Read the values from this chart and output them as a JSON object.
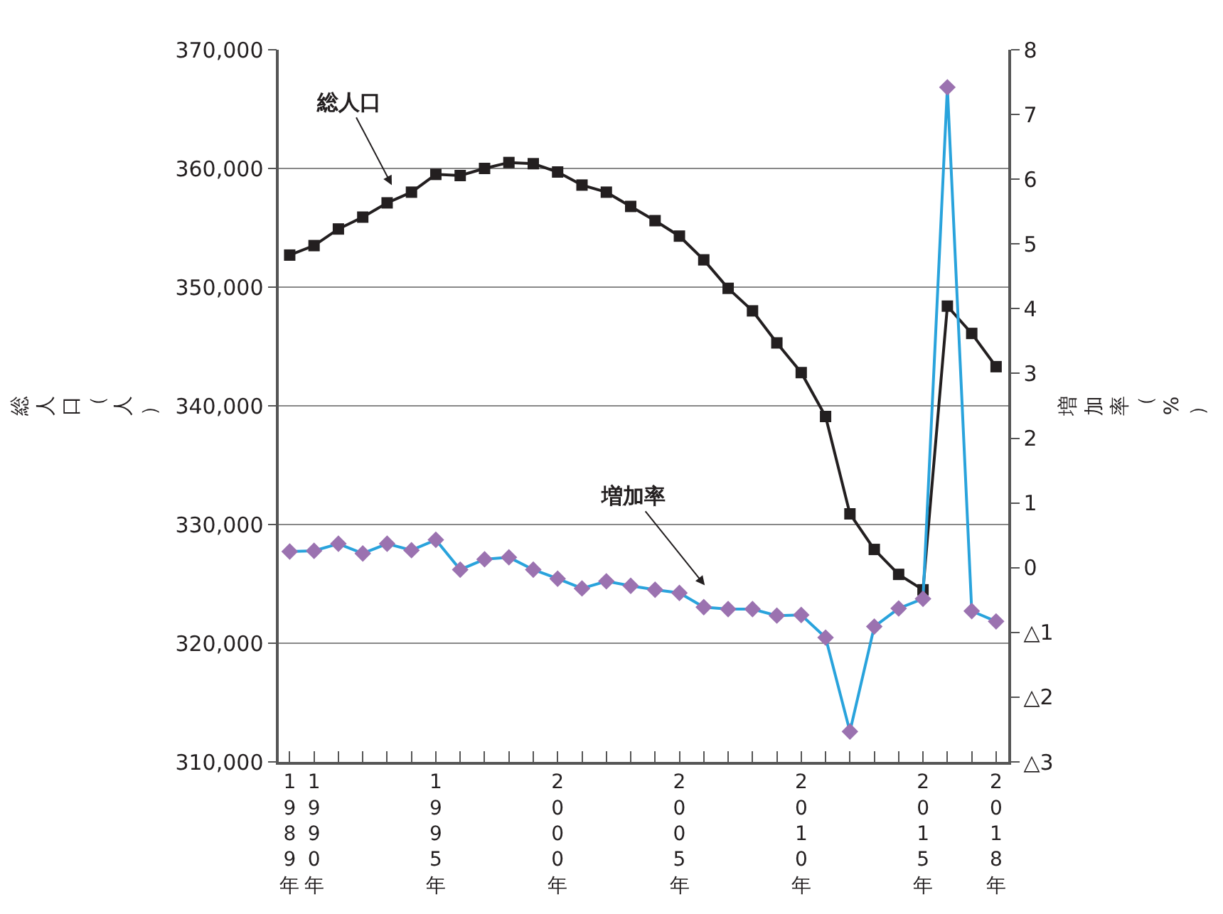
{
  "chart_data": {
    "type": "line",
    "ylabel": "総人口（人）",
    "y2label": "増加率（%）",
    "x": [
      1989,
      1990,
      1991,
      1992,
      1993,
      1994,
      1995,
      1996,
      1997,
      1998,
      1999,
      2000,
      2001,
      2002,
      2003,
      2004,
      2005,
      2006,
      2007,
      2008,
      2009,
      2010,
      2011,
      2012,
      2013,
      2014,
      2015,
      2016,
      2017,
      2018
    ],
    "series": [
      {
        "name": null,
        "color": "#231f20",
        "marker": "square",
        "values": [
          352700,
          353500,
          354900,
          355900,
          357100,
          358000,
          359500,
          359400,
          360000,
          360500,
          360400,
          359700,
          358600,
          358000,
          356800,
          355600,
          354300,
          352300,
          349900,
          348000,
          345300,
          342800,
          339100,
          330900,
          327900,
          325800,
          324500,
          348400,
          346100,
          343300
        ]
      },
      {
        "name": null,
        "color": "#29a3dc",
        "marker": "diamond",
        "axis": "y2",
        "colors": [
          "#9b72b0",
          "#9b72b0",
          "#9b72b0",
          "#9b72b0",
          "#9b72b0",
          "#9b72b0",
          "#9b72b0",
          "#9b72b0",
          "#9b72b0",
          "#9b72b0",
          "#9b72b0",
          "#9b72b0",
          "#9b72b0",
          "#9b72b0",
          "#9b72b0",
          "#9b72b0",
          "#9b72b0",
          "#9b72b0",
          "#9b72b0",
          "#9b72b0",
          "#9b72b0",
          "#9b72b0",
          "#9b72b0",
          "#9b72b0",
          "#9b72b0",
          "#9b72b0",
          "#9b72b0",
          "#9b72b0",
          "#9b72b0",
          "#9b72b0"
        ],
        "values": [
          0.25,
          0.26,
          0.37,
          0.22,
          0.37,
          0.27,
          0.43,
          -0.03,
          0.13,
          0.16,
          -0.03,
          -0.17,
          -0.32,
          -0.21,
          -0.28,
          -0.34,
          -0.39,
          -0.61,
          -0.64,
          -0.64,
          -0.74,
          -0.73,
          -1.08,
          -2.53,
          -0.91,
          -0.63,
          -0.48,
          7.42,
          -0.67,
          -0.83
        ]
      }
    ],
    "xlim": [
      1988.55,
      2018.5
    ],
    "xticks": [
      {
        "value": 1989,
        "label": "1989年"
      },
      {
        "value": 1990,
        "label": "1990年"
      },
      {
        "value": 1991,
        "label": null
      },
      {
        "value": 1992,
        "label": null
      },
      {
        "value": 1993,
        "label": null
      },
      {
        "value": 1994,
        "label": null
      },
      {
        "value": 1995,
        "label": "1995年"
      },
      {
        "value": 1996,
        "label": null
      },
      {
        "value": 1997,
        "label": null
      },
      {
        "value": 1998,
        "label": null
      },
      {
        "value": 1999,
        "label": null
      },
      {
        "value": 2000,
        "label": "2000年"
      },
      {
        "value": 2001,
        "label": null
      },
      {
        "value": 2002,
        "label": null
      },
      {
        "value": 2003,
        "label": null
      },
      {
        "value": 2004,
        "label": null
      },
      {
        "value": 2005,
        "label": "2005年"
      },
      {
        "value": 2006,
        "label": null
      },
      {
        "value": 2007,
        "label": null
      },
      {
        "value": 2008,
        "label": null
      },
      {
        "value": 2009,
        "label": null
      },
      {
        "value": 2010,
        "label": "2010年"
      },
      {
        "value": 2011,
        "label": null
      },
      {
        "value": 2012,
        "label": null
      },
      {
        "value": 2013,
        "label": null
      },
      {
        "value": 2014,
        "label": null
      },
      {
        "value": 2015,
        "label": "2015年"
      },
      {
        "value": 2016,
        "label": null
      },
      {
        "value": 2017,
        "label": null
      },
      {
        "value": 2018,
        "label": "2018年"
      }
    ],
    "ylim": [
      310000,
      370000
    ],
    "yticks": [
      {
        "value": 310000,
        "label": "310,000"
      },
      {
        "value": 320000,
        "label": "320,000"
      },
      {
        "value": 330000,
        "label": "330,000"
      },
      {
        "value": 340000,
        "label": "340,000"
      },
      {
        "value": 350000,
        "label": "350,000"
      },
      {
        "value": 360000,
        "label": "360,000"
      },
      {
        "value": 370000,
        "label": "370,000"
      }
    ],
    "y2lim": [
      -3,
      8
    ],
    "y2ticks": [
      {
        "value": -3,
        "label": "△3"
      },
      {
        "value": -2,
        "label": "△2"
      },
      {
        "value": -1,
        "label": "△1"
      },
      0,
      1,
      2,
      3,
      4,
      5,
      6,
      7,
      8
    ],
    "grid": "y",
    "line_style": "solid",
    "annotations": [
      "総人口",
      "増加率"
    ]
  }
}
